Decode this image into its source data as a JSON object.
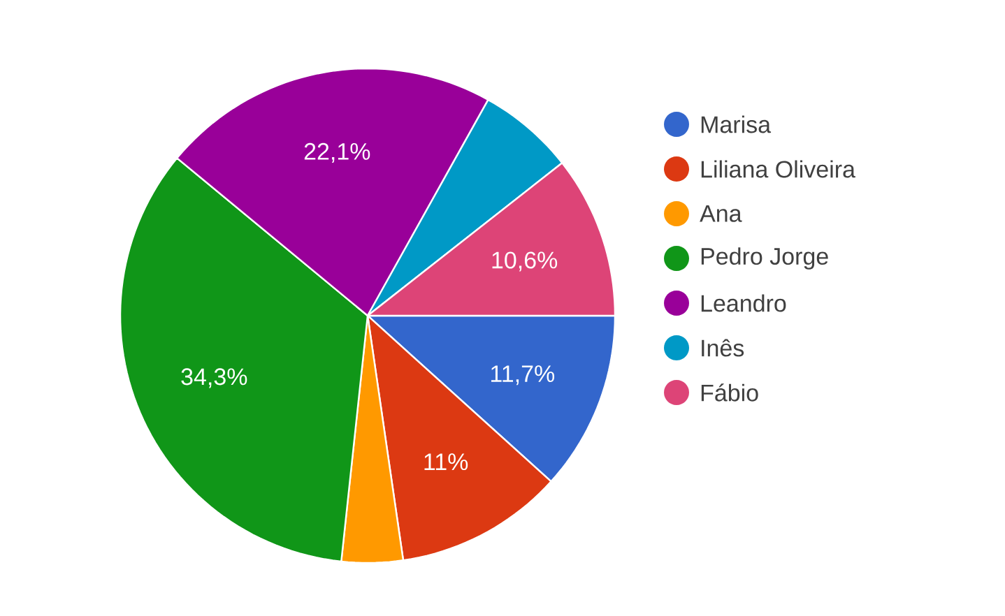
{
  "chart_data": {
    "type": "pie",
    "categories": [
      "Marisa",
      "Liliana Oliveira",
      "Ana",
      "Pedro Jorge",
      "Leandro",
      "Inês",
      "Fábio"
    ],
    "values": [
      11.7,
      11,
      4.0,
      34.3,
      22.1,
      6.3,
      10.6
    ],
    "colors": [
      "#3366cc",
      "#dc3912",
      "#ff9900",
      "#109618",
      "#990099",
      "#0099c6",
      "#dd4477"
    ],
    "value_labels": [
      "11,7%",
      "11%",
      null,
      "34,3%",
      "22,1%",
      null,
      "10,6%"
    ],
    "legend": "right"
  }
}
